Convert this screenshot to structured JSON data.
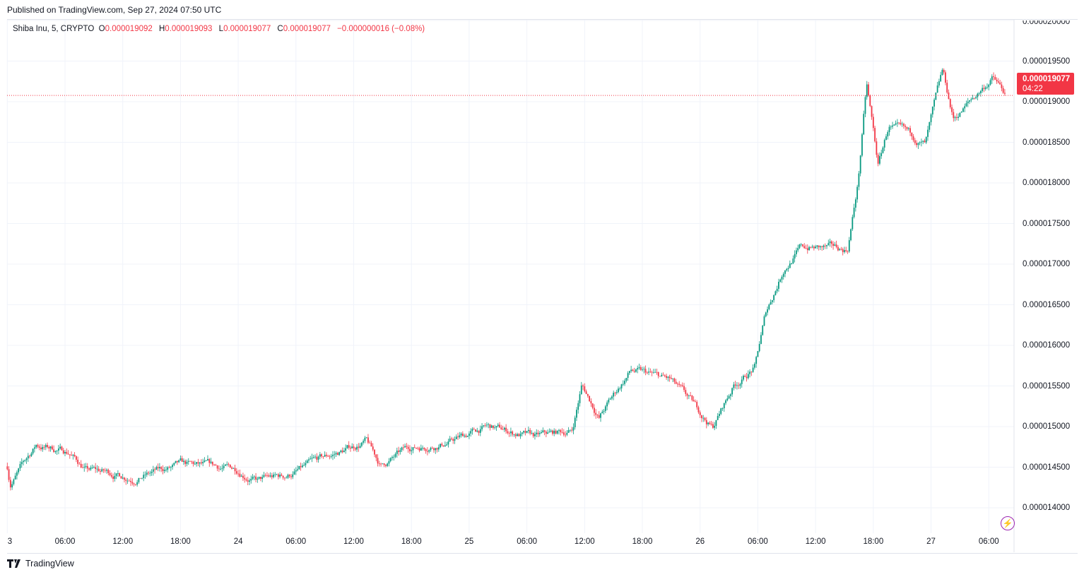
{
  "published": "Published on TradingView.com, Sep 27, 2024 07:50 UTC",
  "legend": {
    "symbol": "Shiba Inu, 5, CRYPTO",
    "o_label": "O",
    "o": "0.000019092",
    "h_label": "H",
    "h": "0.000019093",
    "l_label": "L",
    "l": "0.000019077",
    "c_label": "C",
    "c": "0.000019077",
    "change": "−0.000000016 (−0.08%)"
  },
  "price_tag": {
    "price": "0.000019077",
    "countdown": "04:22"
  },
  "brand": "TradingView",
  "colors": {
    "up": "#089981",
    "down": "#F23645",
    "grid": "#f0f3fa",
    "accent": "#9c27b0"
  },
  "chart_data": {
    "type": "candlestick",
    "title": "Shiba Inu, 5, CRYPTO",
    "y_unit": "USD (values in millionths, 1e-6)",
    "ylim": [
      14.0,
      20.0
    ],
    "y_ticks": [
      "0.000020000",
      "0.000019500",
      "0.000019000",
      "0.000018500",
      "0.000018000",
      "0.000017500",
      "0.000017000",
      "0.000016500",
      "0.000016000",
      "0.000015500",
      "0.000015000",
      "0.000014500",
      "0.000014000"
    ],
    "y_tick_values": [
      20.0,
      19.5,
      19.0,
      18.5,
      18.0,
      17.5,
      17.0,
      16.5,
      16.0,
      15.5,
      15.0,
      14.5,
      14.0
    ],
    "x_ticks": [
      "3",
      "06:00",
      "12:00",
      "18:00",
      "24",
      "06:00",
      "12:00",
      "18:00",
      "25",
      "06:00",
      "12:00",
      "18:00",
      "26",
      "06:00",
      "12:00",
      "18:00",
      "27",
      "06:00"
    ],
    "x_tick_hours": [
      0,
      6,
      12,
      18,
      24,
      30,
      36,
      42,
      48,
      54,
      60,
      66,
      72,
      78,
      84,
      90,
      96,
      102
    ],
    "last_price": 19.077,
    "path_hours_price": [
      [
        0,
        14.51
      ],
      [
        0.3,
        14.3
      ],
      [
        3,
        14.77
      ],
      [
        6.4,
        14.69
      ],
      [
        8.2,
        14.47
      ],
      [
        13,
        14.38
      ],
      [
        18,
        14.51
      ],
      [
        24,
        14.47
      ],
      [
        26,
        14.34
      ],
      [
        28.8,
        14.38
      ],
      [
        33,
        14.6
      ],
      [
        37.3,
        14.82
      ],
      [
        38.8,
        14.51
      ],
      [
        41.7,
        14.73
      ],
      [
        46,
        14.82
      ],
      [
        49.8,
        14.99
      ],
      [
        55,
        14.86
      ],
      [
        58.7,
        14.95
      ],
      [
        59.7,
        15.51
      ],
      [
        61.5,
        15.12
      ],
      [
        64.8,
        15.69
      ],
      [
        68.9,
        15.56
      ],
      [
        73.3,
        14.99
      ],
      [
        75.5,
        15.51
      ],
      [
        77.7,
        15.73
      ],
      [
        78.8,
        16.38
      ],
      [
        80.7,
        16.95
      ],
      [
        82.5,
        17.21
      ],
      [
        87.3,
        17.17
      ],
      [
        88.4,
        17.99
      ],
      [
        89.3,
        19.21
      ],
      [
        90.5,
        18.21
      ],
      [
        91.6,
        18.69
      ],
      [
        95.4,
        18.47
      ],
      [
        97.2,
        19.34
      ],
      [
        98.3,
        18.77
      ],
      [
        102.4,
        19.3
      ],
      [
        103.8,
        19.077
      ]
    ]
  }
}
